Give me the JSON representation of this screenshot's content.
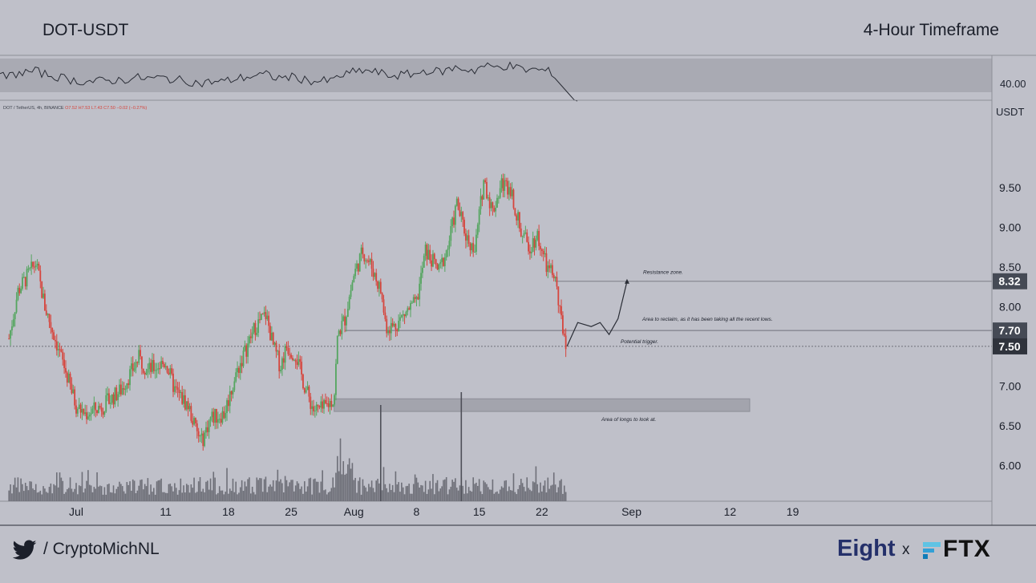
{
  "header": {
    "pair": "DOT-USDT",
    "timeframe": "4-Hour Timeframe"
  },
  "symbol_info": {
    "pair": "DOT / TetherUS, 4h, BINANCE",
    "ohlc": "O7.52 H7.53 L7.43 C7.50 −0.02 (−0.27%)"
  },
  "footer": {
    "handle": "/ CryptoMichNL",
    "brand_left": "Eight",
    "brand_sep": "x",
    "brand_right": "FTX"
  },
  "colors": {
    "background": "#bfc0c9",
    "up": "#54a55f",
    "down": "#d6453d",
    "zone": "#9fa0a9",
    "text": "#1b1f2a",
    "tag": "#454a55"
  },
  "chart_data": {
    "type": "candlestick",
    "currency_label": "USDT",
    "ylim": [
      5.55,
      10.6
    ],
    "y_ticks": [
      "9.50",
      "9.00",
      "8.50",
      "8.00",
      "7.50",
      "7.00",
      "6.50",
      "6.00"
    ],
    "x_ticks": [
      "Jul",
      "11",
      "18",
      "25",
      "Aug",
      "8",
      "15",
      "22",
      "Sep",
      "12",
      "19"
    ],
    "x_tick_days": [
      0,
      10,
      17,
      24,
      31,
      38,
      45,
      52,
      62,
      73,
      80
    ],
    "x_start": "2021-06-23",
    "price_path": [
      [
        -7.5,
        7.6
      ],
      [
        -6.5,
        8.2
      ],
      [
        -4.5,
        8.55
      ],
      [
        -3.5,
        8.0
      ],
      [
        -1.5,
        7.3
      ],
      [
        0,
        6.75
      ],
      [
        1,
        6.65
      ],
      [
        3,
        6.75
      ],
      [
        5,
        6.95
      ],
      [
        7,
        7.35
      ],
      [
        8,
        7.2
      ],
      [
        10,
        7.3
      ],
      [
        11,
        6.95
      ],
      [
        12.5,
        6.75
      ],
      [
        13.5,
        6.4
      ],
      [
        14,
        6.3
      ],
      [
        15,
        6.6
      ],
      [
        16.5,
        6.65
      ],
      [
        18,
        7.2
      ],
      [
        20,
        7.75
      ],
      [
        21.2,
        7.9
      ],
      [
        22,
        7.5
      ],
      [
        22.8,
        7.25
      ],
      [
        23.5,
        7.5
      ],
      [
        24.5,
        7.4
      ],
      [
        25.5,
        7.0
      ],
      [
        26.5,
        6.7
      ],
      [
        27.5,
        6.7
      ],
      [
        28.8,
        6.85
      ],
      [
        29.2,
        7.65
      ],
      [
        30,
        7.85
      ],
      [
        31,
        8.4
      ],
      [
        32,
        8.7
      ],
      [
        33,
        8.5
      ],
      [
        34,
        8.2
      ],
      [
        34.6,
        7.75
      ],
      [
        35.5,
        7.75
      ],
      [
        37,
        7.95
      ],
      [
        38,
        8.05
      ],
      [
        39,
        8.7
      ],
      [
        40.5,
        8.45
      ],
      [
        41.5,
        8.75
      ],
      [
        42.5,
        9.3
      ],
      [
        43.5,
        8.9
      ],
      [
        44.5,
        8.7
      ],
      [
        45.5,
        9.6
      ],
      [
        46.5,
        9.2
      ],
      [
        47.5,
        9.55
      ],
      [
        48.5,
        9.5
      ],
      [
        49.5,
        9.0
      ],
      [
        50.5,
        8.75
      ],
      [
        51.5,
        8.9
      ],
      [
        52.5,
        8.5
      ],
      [
        53.5,
        8.35
      ],
      [
        54,
        7.9
      ],
      [
        54.8,
        7.5
      ]
    ],
    "volume_spikes": [
      [
        34,
        0.75
      ],
      [
        43,
        0.85
      ]
    ],
    "oscillator": {
      "label": "40.00"
    },
    "price_tags": [
      "8.32",
      "7.70",
      "7.50"
    ],
    "annotations": [
      {
        "label": "Resistance zone.",
        "price": 8.32
      },
      {
        "label": "Area to reclaim, as it has been taking all the recent lows.",
        "price": 7.7
      },
      {
        "label": "Potential trigger.",
        "price": 7.5
      },
      {
        "label": "Area of longs to look at.",
        "price_range": [
          6.68,
          6.84
        ]
      }
    ],
    "projection_path": [
      [
        54.8,
        7.5
      ],
      [
        56,
        7.8
      ],
      [
        57.5,
        7.75
      ],
      [
        58.5,
        7.8
      ],
      [
        59.5,
        7.65
      ],
      [
        60.5,
        7.85
      ],
      [
        61.5,
        8.32
      ]
    ]
  }
}
